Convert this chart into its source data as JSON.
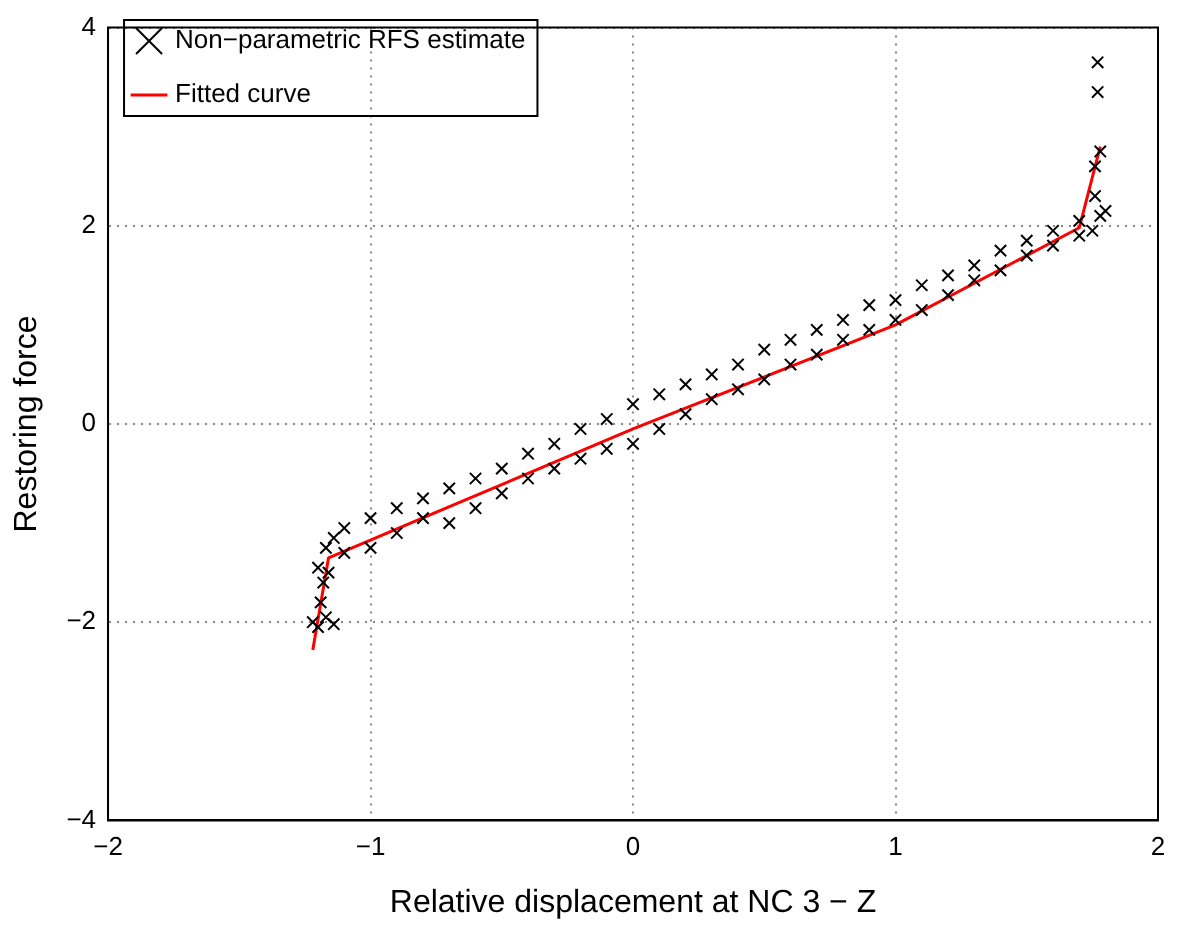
{
  "chart_data": {
    "type": "scatter",
    "xlabel": "Relative displacement at NC 3 − Z",
    "ylabel": "Restoring force",
    "xlim": [
      -2,
      2
    ],
    "xticks": [
      -2,
      -1,
      0,
      1,
      2
    ],
    "ylim": [
      -4,
      4
    ],
    "yticks": [
      -4,
      -2,
      0,
      2,
      4
    ],
    "grid": true,
    "legend": "top left",
    "series": [
      {
        "name": "Non−parametric RFS estimate",
        "type": "scatter",
        "marker": "cross",
        "color": "#000000",
        "x": [
          -1.22,
          -1.2,
          -1.17,
          -1.14,
          -1.19,
          -1.18,
          -1.2,
          -1.16,
          -1.17,
          -1.14,
          -1.1,
          -1.1,
          -1.0,
          -1.0,
          -0.9,
          -0.9,
          -0.8,
          -0.8,
          -0.7,
          -0.7,
          -0.6,
          -0.6,
          -0.5,
          -0.5,
          -0.4,
          -0.4,
          -0.3,
          -0.3,
          -0.2,
          -0.2,
          -0.1,
          -0.1,
          0,
          0,
          0.1,
          0.1,
          0.2,
          0.2,
          0.3,
          0.3,
          0.4,
          0.4,
          0.5,
          0.5,
          0.6,
          0.6,
          0.7,
          0.7,
          0.8,
          0.8,
          0.9,
          0.9,
          1.0,
          1.0,
          1.1,
          1.1,
          1.2,
          1.2,
          1.3,
          1.3,
          1.4,
          1.4,
          1.5,
          1.5,
          1.6,
          1.6,
          1.7,
          1.7,
          1.75,
          1.78,
          1.8,
          1.76,
          1.78,
          1.76,
          1.77,
          1.77
        ],
        "values": [
          -2.0,
          -2.05,
          -1.95,
          -2.02,
          -1.8,
          -1.6,
          -1.45,
          -1.5,
          -1.25,
          -1.15,
          -1.05,
          -1.3,
          -0.95,
          -1.25,
          -0.85,
          -1.1,
          -0.75,
          -0.95,
          -0.65,
          -1.0,
          -0.55,
          -0.85,
          -0.45,
          -0.7,
          -0.3,
          -0.55,
          -0.2,
          -0.45,
          -0.05,
          -0.35,
          0.05,
          -0.25,
          0.2,
          -0.2,
          0.3,
          -0.05,
          0.4,
          0.1,
          0.5,
          0.25,
          0.6,
          0.35,
          0.75,
          0.45,
          0.85,
          0.6,
          0.95,
          0.7,
          1.05,
          0.85,
          1.2,
          0.95,
          1.25,
          1.05,
          1.4,
          1.15,
          1.5,
          1.3,
          1.6,
          1.45,
          1.75,
          1.55,
          1.85,
          1.7,
          1.95,
          1.8,
          2.05,
          1.9,
          1.95,
          2.1,
          2.15,
          2.3,
          2.75,
          2.6,
          3.35,
          3.65
        ]
      },
      {
        "name": "Fitted curve",
        "type": "line",
        "marker": "none",
        "line_style": "solid",
        "color": "#ff0000",
        "x": [
          -1.22,
          -1.16,
          0,
          1,
          1.7,
          1.78
        ],
        "values": [
          -2.28,
          -1.35,
          -0.05,
          1.0,
          1.98,
          2.8
        ]
      }
    ]
  }
}
